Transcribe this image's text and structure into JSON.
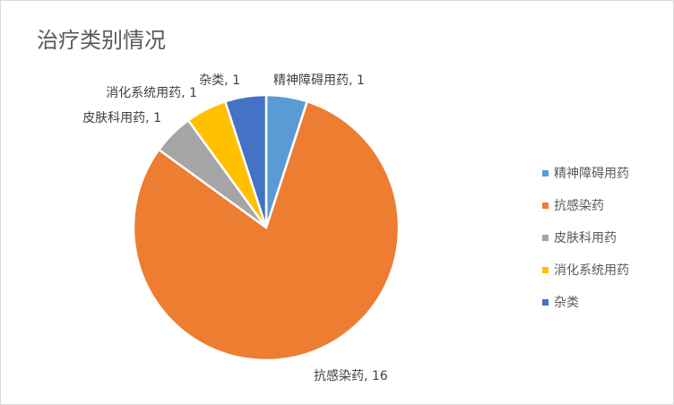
{
  "chart_data": {
    "type": "pie",
    "title": "治疗类别情况",
    "categories": [
      "精神障碍用药",
      "抗感染药",
      "皮肤科用药",
      "消化系统用药",
      "杂类"
    ],
    "values": [
      1,
      16,
      1,
      1,
      1
    ],
    "colors": [
      "#5B9BD5",
      "#ED7D31",
      "#A5A5A5",
      "#FFC000",
      "#4472C4"
    ],
    "data_labels": [
      "精神障碍用药, 1",
      "抗感染药, 16",
      "皮肤科用药, 1",
      "消化系统用药, 1",
      "杂类, 1"
    ],
    "start_angle": "12 o'clock, clockwise",
    "legend_position": "right"
  }
}
